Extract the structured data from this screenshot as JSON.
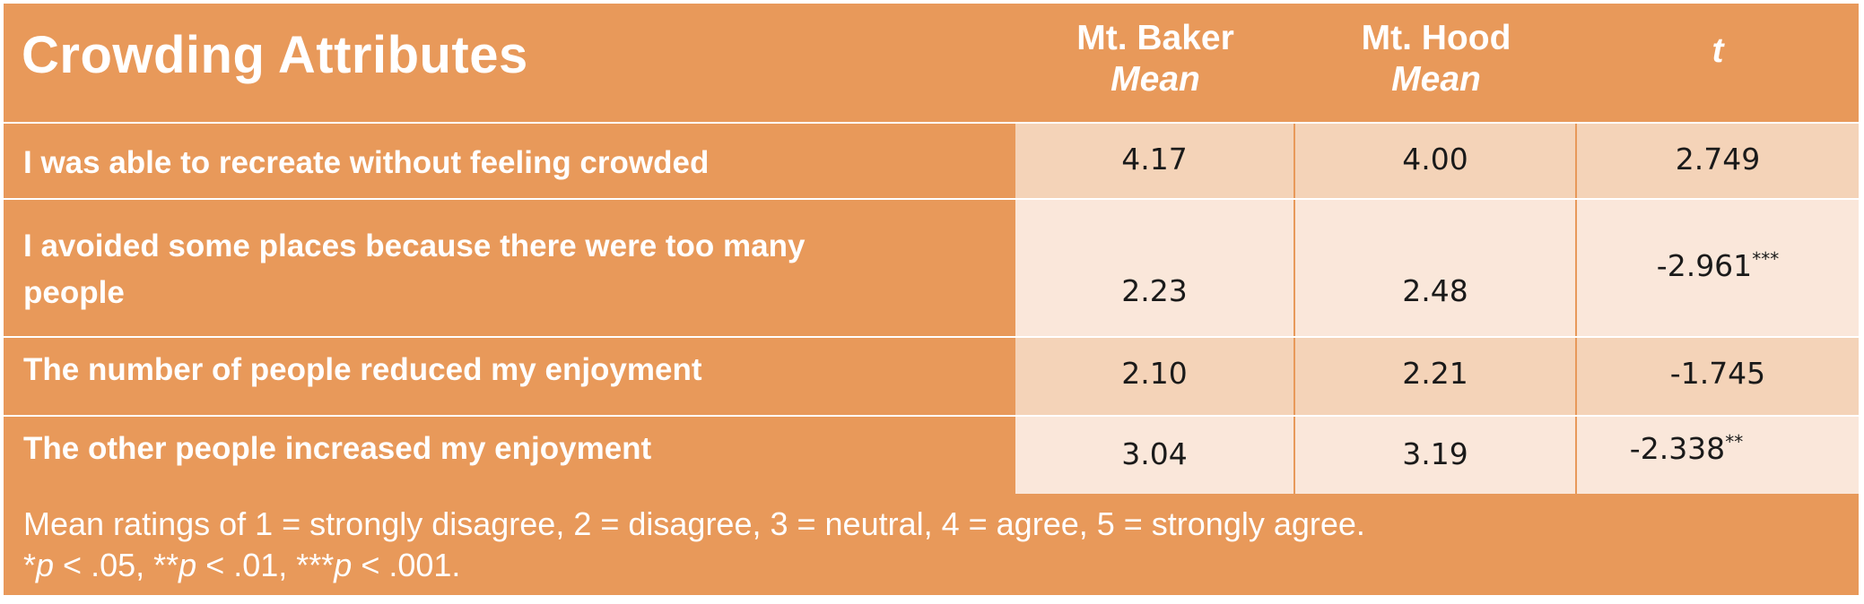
{
  "table": {
    "title": "Crowding Attributes",
    "columns": [
      {
        "line1": "Mt. Baker",
        "line2": "Mean"
      },
      {
        "line1": "Mt. Hood",
        "line2": "Mean"
      },
      {
        "line1": "",
        "line2": "t"
      }
    ],
    "rows": [
      {
        "label": "I was able to recreate without feeling crowded",
        "baker": "4.17",
        "hood": "4.00",
        "t": "2.749",
        "t_sig": ""
      },
      {
        "label": "I avoided some places because there were too many people",
        "baker": "2.23",
        "hood": "2.48",
        "t": "-2.961",
        "t_sig": "***"
      },
      {
        "label": "The number of people reduced my enjoyment",
        "baker": "2.10",
        "hood": "2.21",
        "t": "-1.745",
        "t_sig": ""
      },
      {
        "label": "The other people increased my enjoyment",
        "baker": "3.04",
        "hood": "3.19",
        "t": "-2.338",
        "t_sig": "**"
      }
    ]
  },
  "footnote": {
    "scale": "Mean ratings of 1 = strongly disagree, 2 = disagree, 3 = neutral, 4 = agree, 5 = strongly agree.",
    "sig_1_stars": "*",
    "sig_1_var": "p",
    "sig_1_rest": " < .05, ",
    "sig_2_stars": "**",
    "sig_2_var": "p",
    "sig_2_rest": " < .01, ",
    "sig_3_stars": "***",
    "sig_3_var": "p",
    "sig_3_rest": " < .001."
  },
  "colors": {
    "header_orange": "#e8995a",
    "cell_dark": "#f4d3b8",
    "cell_light": "#fae7da"
  }
}
